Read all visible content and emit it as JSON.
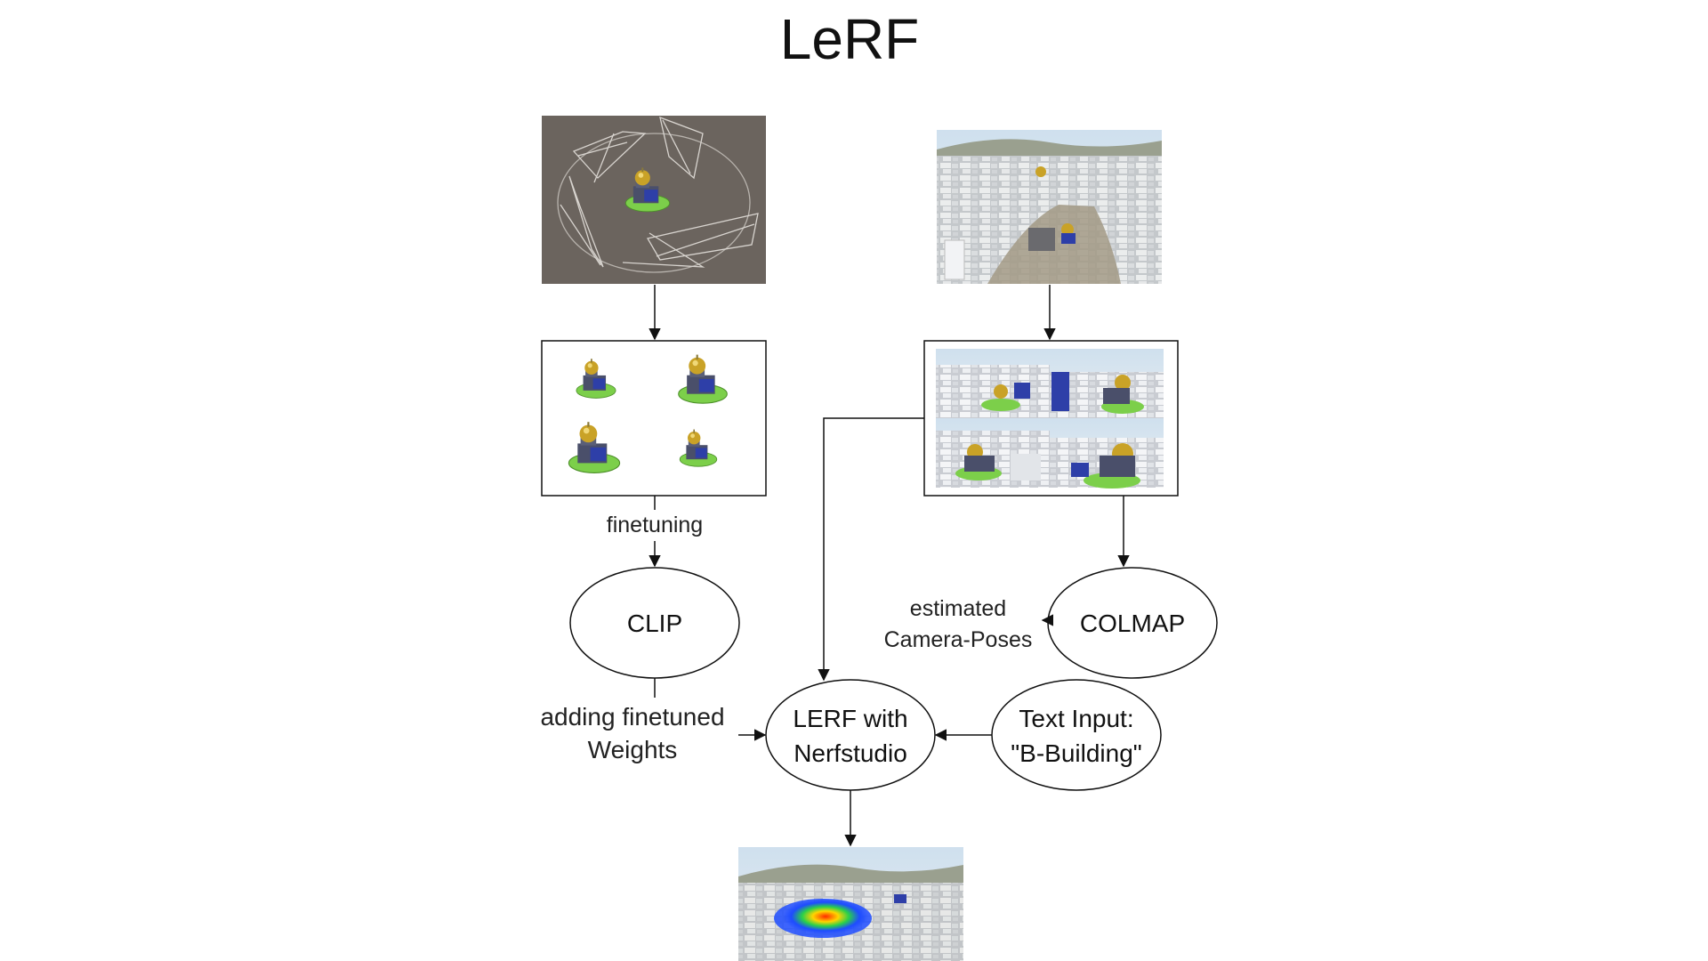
{
  "title": "LeRF",
  "nodes": {
    "clip": "CLIP",
    "colmap": "COLMAP",
    "lerf_line1": "LERF with",
    "lerf_line2": "Nerfstudio",
    "text_input_line1": "Text Input:",
    "text_input_line2": "\"B-Building\""
  },
  "edge_labels": {
    "finetuning": "finetuning",
    "estimated": "estimated",
    "camera_poses": "Camera-Poses",
    "adding_line1": "adding finetuned",
    "adding_line2": "Weights"
  },
  "images": {
    "camera_rig": "camera-rig-render",
    "building_views": "building-model-views",
    "city_scene": "aerial-city-scene",
    "city_views": "city-scene-view-grid",
    "relevancy_map": "lerf-relevancy-heatmap"
  },
  "colors": {
    "line": "#111111",
    "rig_bg": "#6b645e",
    "dome_gold": "#c9a227",
    "building_blue": "#2e3fa8",
    "base_green": "#7ccf4a"
  }
}
